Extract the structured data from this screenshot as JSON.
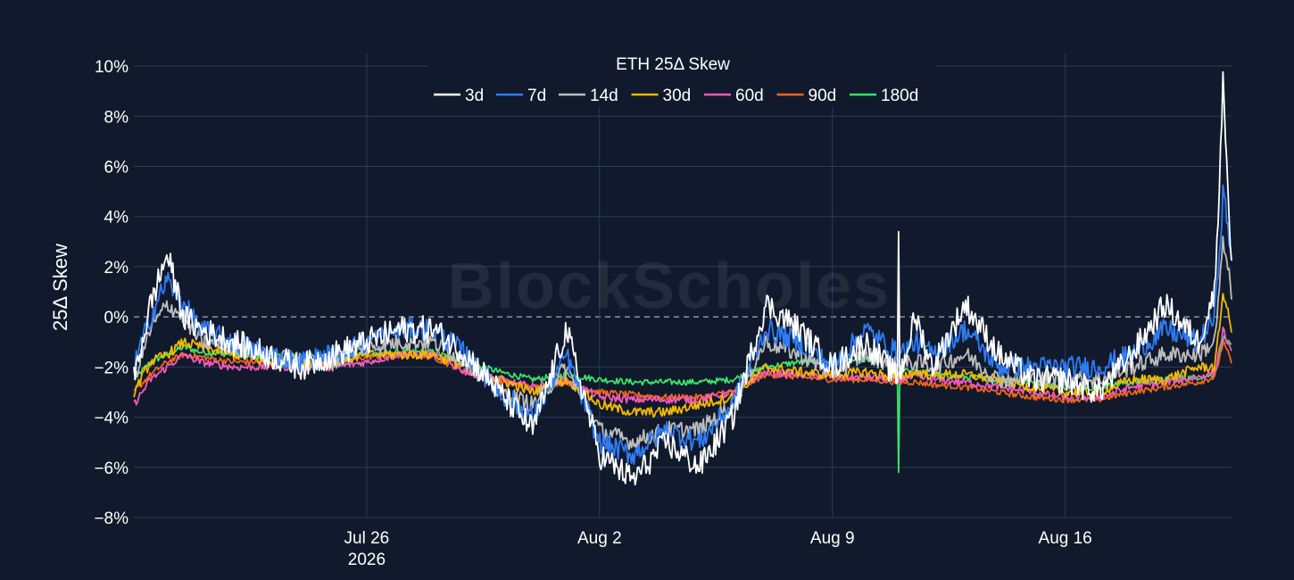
{
  "watermark": "BlockScholes",
  "chart_data": {
    "type": "line",
    "title": "",
    "xlabel": "",
    "ylabel": "25Δ Skew",
    "legend_title": "ETH 25Δ Skew",
    "legend_placement": "top-center",
    "grid": true,
    "zero_line": "dashed",
    "x_range": [
      "2026-07-19",
      "2026-08-21"
    ],
    "ylim": [
      -8,
      10.5
    ],
    "y_ticks": [
      -8,
      -6,
      -4,
      -2,
      0,
      2,
      4,
      6,
      8,
      10
    ],
    "y_tick_labels": [
      "−8%",
      "−6%",
      "−4%",
      "−2%",
      "0%",
      "2%",
      "4%",
      "6%",
      "8%",
      "10%"
    ],
    "x_ticks": [
      "2026-07-26",
      "2026-08-02",
      "2026-08-09",
      "2026-08-16"
    ],
    "x_tick_labels": [
      [
        "Jul 26",
        "2026"
      ],
      [
        "Aug 2"
      ],
      [
        "Aug 9"
      ],
      [
        "Aug 16"
      ]
    ],
    "x": [
      "2026-07-19",
      "2026-07-19 12:00",
      "2026-07-20",
      "2026-07-20 12:00",
      "2026-07-21",
      "2026-07-22",
      "2026-07-23",
      "2026-07-24",
      "2026-07-25",
      "2026-07-26",
      "2026-07-27",
      "2026-07-28",
      "2026-07-29",
      "2026-07-30",
      "2026-07-31",
      "2026-08-01",
      "2026-08-02",
      "2026-08-03",
      "2026-08-04",
      "2026-08-05",
      "2026-08-06",
      "2026-08-07",
      "2026-08-08",
      "2026-08-09",
      "2026-08-10",
      "2026-08-11",
      "2026-08-11 12:00",
      "2026-08-12",
      "2026-08-13",
      "2026-08-14",
      "2026-08-15",
      "2026-08-16",
      "2026-08-17",
      "2026-08-18",
      "2026-08-19",
      "2026-08-20",
      "2026-08-20 12:00",
      "2026-08-20 18:00",
      "2026-08-21"
    ],
    "series": [
      {
        "name": "3d",
        "color": "#ffffff",
        "values": [
          -2.5,
          0.5,
          2.5,
          0.0,
          -0.5,
          -1.0,
          -1.5,
          -2.0,
          -1.5,
          -1.0,
          -0.5,
          -0.5,
          -1.5,
          -3.0,
          -4.5,
          -0.5,
          -5.5,
          -6.5,
          -5.0,
          -6.0,
          -4.0,
          0.5,
          -0.5,
          -2.0,
          -1.0,
          -2.5,
          0.0,
          -2.0,
          0.5,
          -1.5,
          -2.5,
          -2.5,
          -3.0,
          -1.5,
          0.5,
          -1.0,
          1.0,
          9.5,
          2.0
        ]
      },
      {
        "name": "7d",
        "color": "#2f7cf6",
        "values": [
          -2.0,
          0.0,
          1.5,
          0.5,
          -0.5,
          -1.0,
          -1.5,
          -1.8,
          -1.5,
          -1.0,
          -0.5,
          -0.5,
          -1.5,
          -3.0,
          -4.0,
          -1.5,
          -5.0,
          -5.5,
          -4.5,
          -5.0,
          -3.5,
          -0.5,
          -1.0,
          -2.0,
          -0.5,
          -1.5,
          -1.0,
          -1.5,
          -0.5,
          -2.0,
          -2.0,
          -2.0,
          -2.0,
          -1.5,
          -0.5,
          -1.0,
          0.0,
          5.0,
          2.5
        ]
      },
      {
        "name": "14d",
        "color": "#bdbdbd",
        "values": [
          -2.5,
          -0.5,
          0.5,
          0.0,
          -1.0,
          -1.2,
          -1.5,
          -1.8,
          -1.8,
          -1.2,
          -1.0,
          -1.0,
          -1.8,
          -3.0,
          -3.5,
          -2.0,
          -4.5,
          -5.0,
          -4.5,
          -4.5,
          -3.5,
          -1.0,
          -1.5,
          -2.2,
          -1.5,
          -2.0,
          -1.8,
          -2.0,
          -1.5,
          -2.5,
          -2.5,
          -2.5,
          -2.5,
          -2.0,
          -1.5,
          -1.5,
          -1.0,
          3.0,
          1.0
        ]
      },
      {
        "name": "30d",
        "color": "#f5b800",
        "values": [
          -3.0,
          -1.8,
          -1.5,
          -1.0,
          -1.2,
          -1.5,
          -1.8,
          -1.8,
          -1.8,
          -1.5,
          -1.5,
          -1.5,
          -2.0,
          -2.5,
          -3.0,
          -2.5,
          -3.5,
          -3.8,
          -3.8,
          -3.5,
          -3.2,
          -2.0,
          -2.2,
          -2.3,
          -2.2,
          -2.4,
          -2.2,
          -2.3,
          -2.3,
          -2.5,
          -2.8,
          -3.0,
          -3.0,
          -2.5,
          -2.5,
          -2.0,
          -2.0,
          1.0,
          -0.5
        ]
      },
      {
        "name": "60d",
        "color": "#f45ab8",
        "values": [
          -3.5,
          -2.5,
          -2.0,
          -1.5,
          -1.8,
          -2.0,
          -2.0,
          -2.0,
          -2.0,
          -1.8,
          -1.5,
          -1.5,
          -2.2,
          -2.5,
          -2.8,
          -2.5,
          -3.2,
          -3.3,
          -3.3,
          -3.3,
          -3.0,
          -2.2,
          -2.3,
          -2.4,
          -2.4,
          -2.5,
          -2.4,
          -2.5,
          -2.6,
          -2.8,
          -3.0,
          -3.2,
          -3.2,
          -2.8,
          -2.6,
          -2.4,
          -2.2,
          -0.5,
          -1.5
        ]
      },
      {
        "name": "90d",
        "color": "#f2661a",
        "values": [
          -3.0,
          -2.3,
          -1.8,
          -1.5,
          -1.6,
          -1.8,
          -1.8,
          -1.8,
          -1.8,
          -1.6,
          -1.5,
          -1.6,
          -2.2,
          -2.6,
          -2.8,
          -2.6,
          -3.0,
          -3.1,
          -3.2,
          -3.2,
          -3.0,
          -2.3,
          -2.4,
          -2.5,
          -2.5,
          -2.6,
          -2.6,
          -2.7,
          -2.8,
          -3.0,
          -3.2,
          -3.3,
          -3.3,
          -3.0,
          -2.8,
          -2.6,
          -2.4,
          -1.0,
          -1.8
        ]
      },
      {
        "name": "180d",
        "color": "#3be36a",
        "values": [
          -2.5,
          -1.8,
          -1.5,
          -1.2,
          -1.4,
          -1.5,
          -1.6,
          -1.6,
          -1.6,
          -1.5,
          -1.4,
          -1.4,
          -1.8,
          -2.2,
          -2.5,
          -2.3,
          -2.5,
          -2.6,
          -2.6,
          -2.6,
          -2.5,
          -2.0,
          -1.8,
          -1.8,
          -1.7,
          -2.0,
          -2.2,
          -2.3,
          -2.4,
          -2.5,
          -2.6,
          -2.8,
          -2.8,
          -2.6,
          -2.5,
          -2.4,
          -2.3,
          -0.8,
          -1.2
        ]
      }
    ],
    "annotations": [
      {
        "series": "180d",
        "x": "2026-08-11",
        "y": -6.2
      },
      {
        "series": "3d",
        "x": "2026-08-11",
        "y": 3.4
      }
    ]
  }
}
